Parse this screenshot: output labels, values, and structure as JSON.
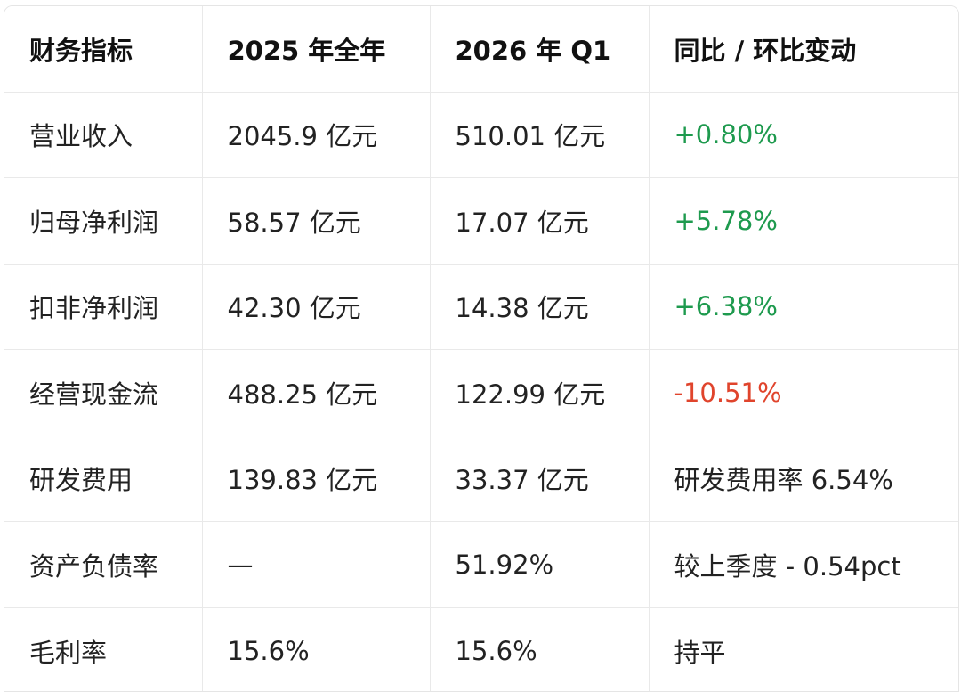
{
  "headers": [
    "财务指标",
    "2025 年全年",
    "2026 年 Q1",
    "同比 / 环比变动"
  ],
  "rows": [
    {
      "metric": "营业收入",
      "fy2025": "2045.9 亿元",
      "q1_2026": "510.01 亿元",
      "change": "+0.80%",
      "change_tone": "positive"
    },
    {
      "metric": "归母净利润",
      "fy2025": "58.57 亿元",
      "q1_2026": "17.07 亿元",
      "change": "+5.78%",
      "change_tone": "positive"
    },
    {
      "metric": "扣非净利润",
      "fy2025": "42.30 亿元",
      "q1_2026": "14.38 亿元",
      "change": "+6.38%",
      "change_tone": "positive"
    },
    {
      "metric": "经营现金流",
      "fy2025": "488.25 亿元",
      "q1_2026": "122.99 亿元",
      "change": "-10.51%",
      "change_tone": "negative"
    },
    {
      "metric": "研发费用",
      "fy2025": "139.83 亿元",
      "q1_2026": "33.37 亿元",
      "change": "研发费用率 6.54%",
      "change_tone": "neutral"
    },
    {
      "metric": "资产负债率",
      "fy2025": "—",
      "q1_2026": "51.92%",
      "change": "较上季度 - 0.54pct",
      "change_tone": "neutral"
    },
    {
      "metric": "毛利率",
      "fy2025": "15.6%",
      "q1_2026": "15.6%",
      "change": "持平",
      "change_tone": "neutral"
    }
  ],
  "colors": {
    "positive": "#1e9a4e",
    "negative": "#e0442c",
    "border": "#e9e9e9"
  }
}
